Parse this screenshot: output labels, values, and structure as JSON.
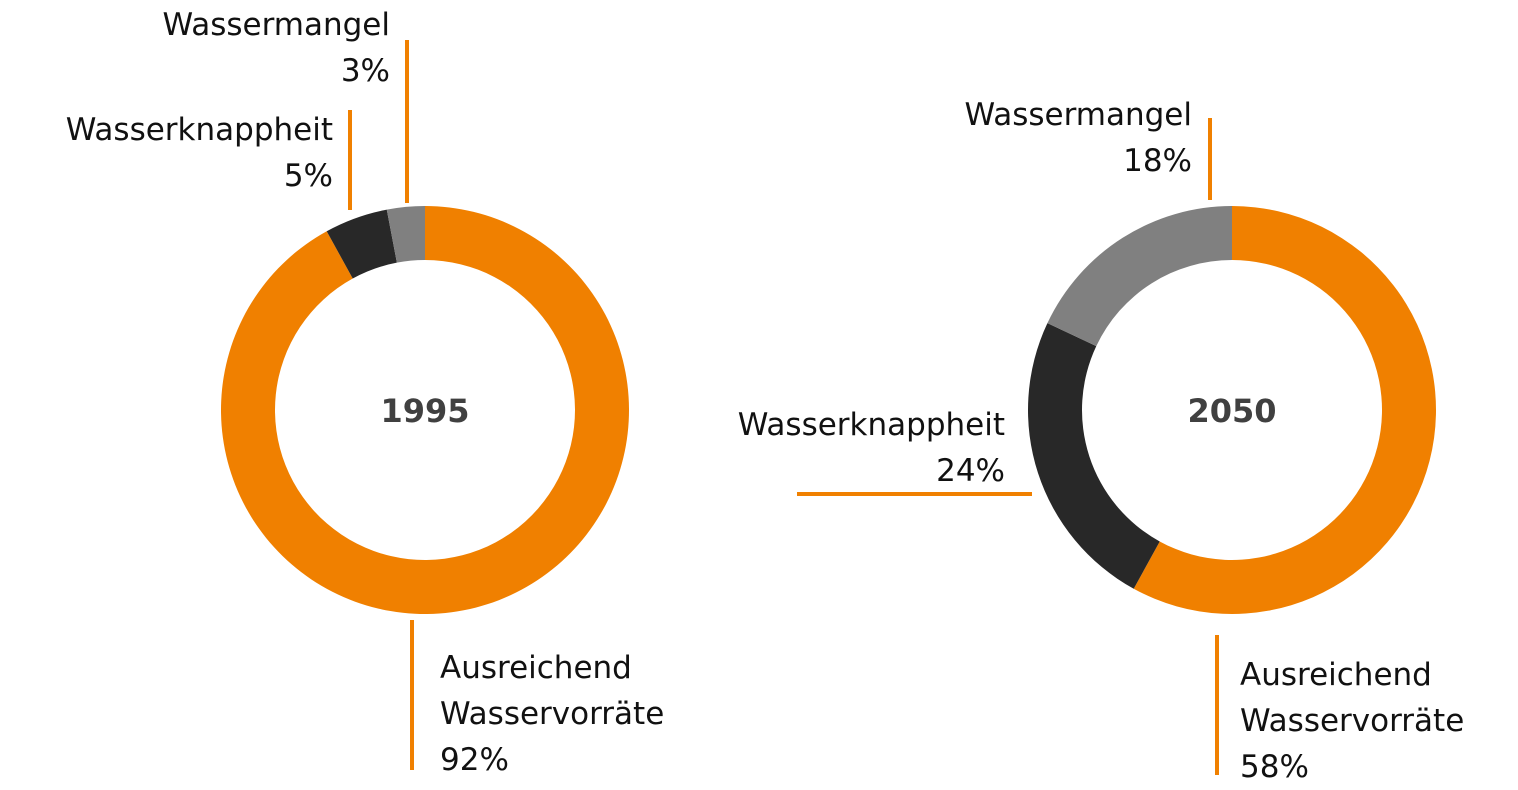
{
  "chart_data": [
    {
      "type": "pie",
      "title": "1995",
      "categories": [
        "Ausreichend Wasservorräte",
        "Wasserknappheit",
        "Wassermangel"
      ],
      "values": [
        92,
        5,
        3
      ],
      "value_labels": [
        "92%",
        "5%",
        "3%"
      ],
      "colors": [
        "#f08000",
        "#282828",
        "#808080"
      ],
      "donut": true
    },
    {
      "type": "pie",
      "title": "2050",
      "categories": [
        "Ausreichend Wasservorräte",
        "Wasserknappheit",
        "Wassermangel"
      ],
      "values": [
        58,
        24,
        18
      ],
      "value_labels": [
        "58%",
        "24%",
        "18%"
      ],
      "colors": [
        "#f08000",
        "#282828",
        "#808080"
      ],
      "donut": true
    }
  ]
}
